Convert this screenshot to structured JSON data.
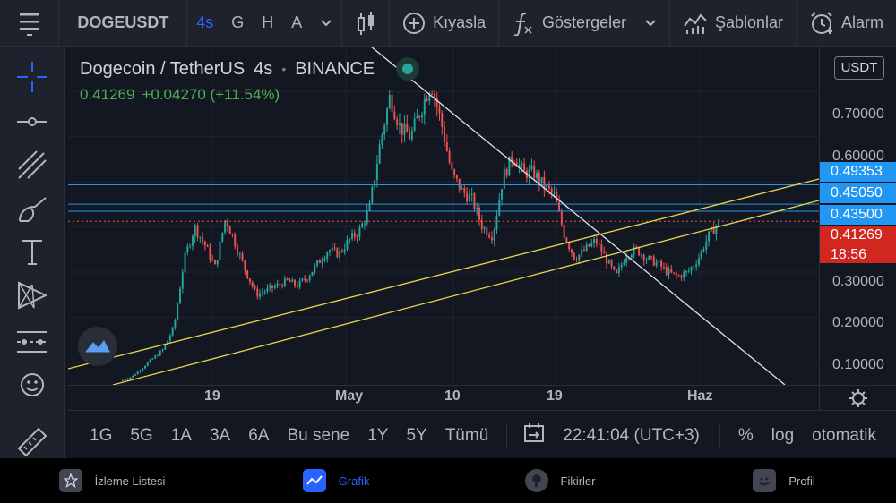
{
  "toolbar": {
    "symbol": "DOGEUSDT",
    "intervals": [
      "4s",
      "G",
      "H",
      "A"
    ],
    "compare_label": "Kıyasla",
    "indicators_label": "Göstergeler",
    "templates_label": "Şablonlar",
    "alarm_label": "Alarm"
  },
  "legend": {
    "title": "Dogecoin / TetherUS",
    "interval": "4s",
    "exchange": "BINANCE",
    "price": "0.41269",
    "change": "+0.04270 (+11.54%)"
  },
  "price_axis": {
    "currency": "USDT",
    "ticks": [
      "0.70000",
      "0.60000",
      "0.30000",
      "0.20000",
      "0.10000"
    ],
    "tag_blue_1": "0.49353",
    "tag_blue_2": "0.45050",
    "tag_blue_3": "0.43500",
    "tag_red_price": "0.41269",
    "tag_red_time": "18:56"
  },
  "time_axis": {
    "labels": [
      "19",
      "May",
      "10",
      "19",
      "Haz"
    ]
  },
  "time_bar": {
    "ranges": [
      "1G",
      "5G",
      "1A",
      "3A",
      "6A",
      "Bu sene",
      "1Y",
      "5Y",
      "Tümü"
    ],
    "clock": "22:41:04 (UTC+3)",
    "percent": "%",
    "log": "log",
    "auto": "otomatik"
  },
  "bottom_nav": {
    "watchlist": "İzleme Listesi",
    "chart": "Grafik",
    "ideas": "Fikirler",
    "profile": "Profil"
  },
  "colors": {
    "up": "#26a69a",
    "down": "#ef5350",
    "accent": "#2962ff",
    "trend_yellow": "#e8d44d",
    "hline_blue": "#2196f3"
  },
  "chart_data": {
    "type": "candlestick",
    "symbol": "DOGEUSDT",
    "interval": "4h",
    "ylim": [
      0.05,
      0.8
    ],
    "close_path": [
      0.06,
      0.07,
      0.09,
      0.11,
      0.13,
      0.18,
      0.33,
      0.4,
      0.36,
      0.31,
      0.42,
      0.36,
      0.3,
      0.25,
      0.26,
      0.27,
      0.28,
      0.27,
      0.29,
      0.32,
      0.35,
      0.34,
      0.37,
      0.39,
      0.44,
      0.58,
      0.69,
      0.62,
      0.6,
      0.66,
      0.72,
      0.63,
      0.52,
      0.48,
      0.46,
      0.4,
      0.38,
      0.51,
      0.56,
      0.52,
      0.52,
      0.49,
      0.47,
      0.38,
      0.33,
      0.35,
      0.37,
      0.33,
      0.29,
      0.34,
      0.35,
      0.33,
      0.32,
      0.3,
      0.29,
      0.3,
      0.33,
      0.38,
      0.41
    ]
  }
}
